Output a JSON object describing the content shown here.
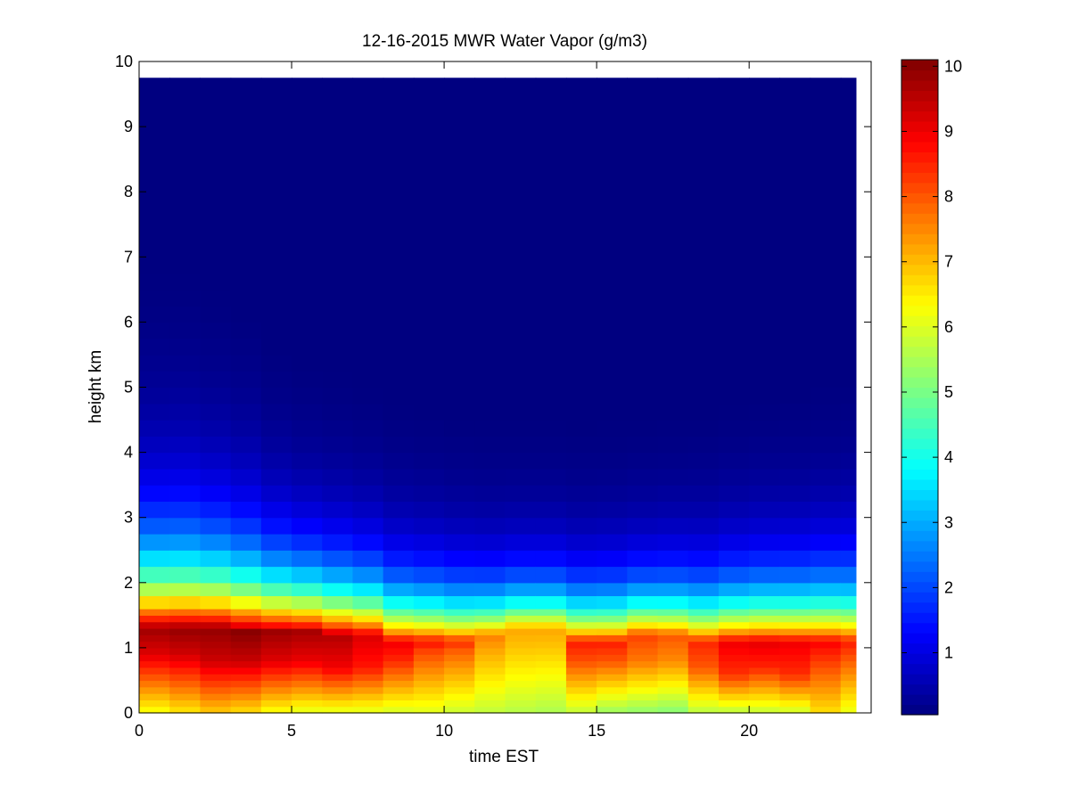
{
  "chart_data": {
    "type": "heatmap",
    "title": "12-16-2015 MWR Water Vapor (g/m3)",
    "xlabel": "time EST",
    "ylabel": "height km",
    "xlim": [
      0,
      24
    ],
    "ylim": [
      0,
      10
    ],
    "x_ticks": [
      0,
      5,
      10,
      15,
      20
    ],
    "y_ticks": [
      0,
      1,
      2,
      3,
      4,
      5,
      6,
      7,
      8,
      9,
      10
    ],
    "colormap": "jet",
    "colorbar": {
      "range": [
        0.05,
        10.1
      ],
      "ticks": [
        1,
        2,
        3,
        4,
        5,
        6,
        7,
        8,
        9,
        10
      ]
    },
    "time_hours": [
      0,
      1,
      2,
      3,
      4,
      5,
      6,
      7,
      8,
      9,
      10,
      11,
      12,
      13,
      14,
      15,
      16,
      17,
      18,
      19,
      20,
      21,
      22,
      23
    ],
    "heights_km": [
      0,
      0.1,
      0.2,
      0.3,
      0.4,
      0.5,
      0.6,
      0.7,
      0.8,
      0.9,
      1.0,
      1.1,
      1.2,
      1.3,
      1.4,
      1.5,
      1.6,
      1.8,
      2.0,
      2.25,
      2.5,
      2.75,
      3.0,
      3.25,
      3.5,
      3.75,
      4.0,
      4.25,
      4.5,
      4.75,
      5.0,
      5.25,
      5.5,
      5.75,
      6.0,
      6.25,
      6.5,
      6.75,
      7.0,
      7.25,
      7.5,
      7.75,
      8.0,
      8.25,
      8.5,
      8.75,
      9.0,
      9.25,
      9.5,
      9.75
    ],
    "profile_params": {
      "surface": [
        6.2,
        6.5,
        6.8,
        6.6,
        6.2,
        6.0,
        6.0,
        6.0,
        5.9,
        6.0,
        5.8,
        5.7,
        5.6,
        5.5,
        5.7,
        5.3,
        5.2,
        5.1,
        5.6,
        5.6,
        5.7,
        5.8,
        6.6,
        6.1
      ],
      "peak": [
        9.8,
        9.9,
        9.9,
        10.0,
        9.8,
        9.7,
        9.6,
        9.2,
        9.0,
        8.8,
        8.5,
        7.6,
        7.2,
        7.2,
        8.6,
        8.6,
        8.2,
        8.0,
        8.5,
        9.0,
        9.1,
        9.0,
        8.9,
        8.6
      ],
      "peak_height_km": [
        1.3,
        1.3,
        1.3,
        1.25,
        1.25,
        1.25,
        1.2,
        1.2,
        1.1,
        1.1,
        1.1,
        1.2,
        1.3,
        1.3,
        1.1,
        1.1,
        1.2,
        1.2,
        1.1,
        1.1,
        1.1,
        1.1,
        1.1,
        1.1
      ],
      "low_layer_km": [
        0.9,
        0.9,
        0.8,
        0.8,
        0.8,
        0.8,
        0.7,
        0.7,
        0.8,
        1.0,
        1.0,
        1.0,
        1.0,
        1.0,
        0.8,
        0.8,
        0.8,
        0.8,
        0.7,
        0.6,
        0.7,
        0.6,
        0.9,
        0.9
      ],
      "scale_height_km": [
        1.05,
        1.05,
        1.0,
        0.95,
        0.85,
        0.8,
        0.78,
        0.75,
        0.72,
        0.7,
        0.68,
        0.66,
        0.65,
        0.65,
        0.65,
        0.66,
        0.66,
        0.68,
        0.7,
        0.72,
        0.74,
        0.75,
        0.78,
        0.8
      ]
    }
  }
}
